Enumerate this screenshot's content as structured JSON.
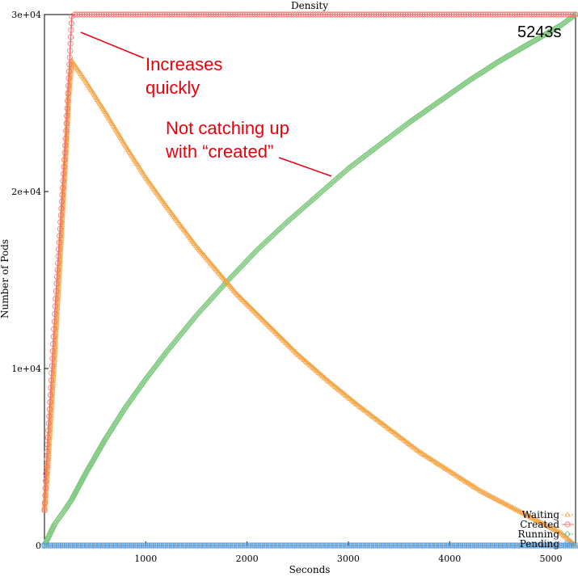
{
  "chart_data": {
    "type": "line",
    "title": "Density",
    "xlabel": "Seconds",
    "ylabel": "Number of Pods",
    "xlim": [
      0,
      5243
    ],
    "ylim": [
      0,
      30000
    ],
    "x_ticks": [
      1000,
      2000,
      3000,
      4000,
      5000
    ],
    "x_tick_labels": [
      "1000",
      "2000",
      "3000",
      "4000",
      "5000"
    ],
    "y_ticks": [
      0,
      10000,
      20000,
      30000
    ],
    "y_tick_labels": [
      "0",
      "1e+04",
      "2e+04",
      "3e+04"
    ],
    "legend_position": "bottom-right",
    "series": [
      {
        "name": "Waiting",
        "color": "#f5a442",
        "marker": "triangle",
        "x": [
          0,
          30,
          60,
          90,
          120,
          150,
          180,
          210,
          240,
          270,
          400,
          600,
          800,
          1000,
          1200,
          1500,
          1900,
          2200,
          2500,
          2800,
          3100,
          3400,
          3700,
          4000,
          4300,
          4600,
          4900,
          5100,
          5243
        ],
        "y": [
          2000,
          4200,
          7000,
          9800,
          12800,
          15800,
          19000,
          22000,
          25500,
          27400,
          26300,
          24500,
          22600,
          20800,
          19200,
          16900,
          14200,
          12500,
          10800,
          9300,
          7900,
          6600,
          5300,
          4200,
          3100,
          2200,
          1300,
          700,
          0
        ]
      },
      {
        "name": "Created",
        "color": "#f07070",
        "marker": "circle",
        "x": [
          0,
          30,
          60,
          90,
          120,
          150,
          180,
          210,
          240,
          270,
          300,
          5243
        ],
        "y": [
          2000,
          5700,
          8500,
          11800,
          14800,
          17500,
          20200,
          23000,
          26400,
          29900,
          30000,
          30000
        ]
      },
      {
        "name": "Running",
        "color": "#7fc97f",
        "marker": "diamond",
        "x": [
          0,
          100,
          200,
          270,
          400,
          600,
          800,
          1000,
          1200,
          1500,
          1800,
          2100,
          2400,
          2700,
          3000,
          3300,
          3600,
          3900,
          4200,
          4500,
          4800,
          5100,
          5243
        ],
        "y": [
          0,
          1200,
          2000,
          2600,
          4000,
          6000,
          7800,
          9400,
          10900,
          13000,
          14900,
          16700,
          18300,
          19800,
          21300,
          22600,
          23900,
          25100,
          26300,
          27400,
          28400,
          29400,
          30000
        ]
      },
      {
        "name": "Pending",
        "color": "#5b9bd5",
        "marker": "square",
        "x": [
          0,
          5243
        ],
        "y": [
          0,
          0
        ]
      }
    ],
    "annotations": [
      {
        "lines": [
          "Increases",
          "quickly"
        ],
        "color": "#e8000d",
        "arrow_to": [
          350,
          29000
        ]
      },
      {
        "lines": [
          "Not catching up",
          "with “created”"
        ],
        "color": "#e8000d",
        "arrow_to": [
          2800,
          21000
        ]
      },
      {
        "lines": [
          "5243s"
        ],
        "color": "#000000"
      }
    ]
  }
}
